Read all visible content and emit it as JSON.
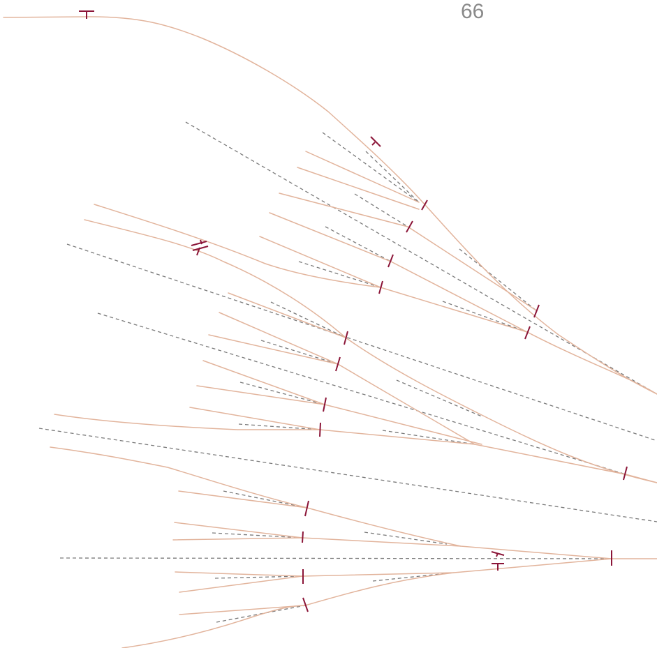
{
  "diagram": {
    "label": "66",
    "colors": {
      "background": "#ffffff",
      "track": "#e2b49c",
      "guide": "#7a7a7a",
      "marker": "#8b1538",
      "label": "#8a8a8a"
    }
  }
}
